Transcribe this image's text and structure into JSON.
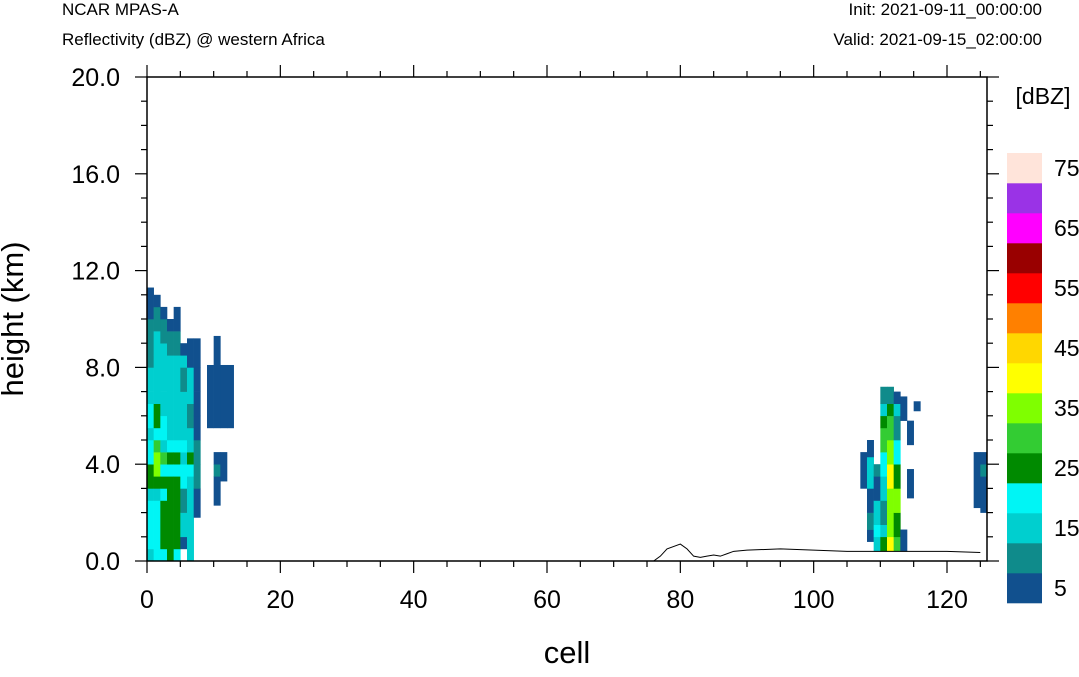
{
  "header": {
    "model": "NCAR MPAS-A",
    "field": "Reflectivity (dBZ) @ western Africa",
    "init": "Init: 2021-09-11_00:00:00",
    "valid": "Valid: 2021-09-15_02:00:00"
  },
  "chart_data": {
    "type": "heatmap",
    "title": "Reflectivity (dBZ) @ western Africa",
    "xlabel": "cell",
    "ylabel": "height (km)",
    "xlim": [
      0,
      126
    ],
    "ylim": [
      0,
      20
    ],
    "x_ticks": [
      0,
      20,
      40,
      60,
      80,
      100,
      120
    ],
    "x_tick_labels": [
      "0",
      "20",
      "40",
      "60",
      "80",
      "100",
      "120"
    ],
    "y_ticks": [
      0,
      4,
      8,
      12,
      16,
      20
    ],
    "y_tick_labels": [
      "0.0",
      "4.0",
      "8.0",
      "12.0",
      "16.0",
      "20.0"
    ],
    "colorbar": {
      "title": "[dBZ]",
      "levels": [
        5,
        10,
        15,
        20,
        25,
        30,
        35,
        40,
        45,
        50,
        55,
        60,
        65,
        70,
        75
      ],
      "tick_labels": [
        "5",
        "15",
        "25",
        "35",
        "45",
        "55",
        "65",
        "75"
      ],
      "colors": [
        "#11508e",
        "#0f8b8b",
        "#00cfcf",
        "#00f5f5",
        "#008a00",
        "#33cc33",
        "#7fff00",
        "#ffff00",
        "#ffd700",
        "#ff8000",
        "#ff0000",
        "#990000",
        "#ff00ff",
        "#9a33e6",
        "#ffe4da"
      ]
    },
    "terrain": {
      "x": [
        0,
        76,
        77,
        78,
        80,
        81,
        82,
        83,
        84,
        85,
        86,
        87,
        88,
        90,
        95,
        100,
        105,
        110,
        115,
        120,
        125
      ],
      "height": [
        0.0,
        0.0,
        0.2,
        0.5,
        0.7,
        0.5,
        0.2,
        0.15,
        0.2,
        0.25,
        0.2,
        0.3,
        0.4,
        0.45,
        0.5,
        0.45,
        0.4,
        0.4,
        0.4,
        0.4,
        0.35
      ]
    },
    "cells": [
      {
        "x": 0,
        "dbz": [
          [
            0,
            0.5,
            15
          ],
          [
            0.5,
            2.5,
            20
          ],
          [
            2.5,
            3.0,
            15
          ],
          [
            3.0,
            4.0,
            25
          ],
          [
            4.0,
            5.0,
            20
          ],
          [
            5.0,
            5.5,
            15
          ],
          [
            5.5,
            6.5,
            20
          ],
          [
            6.5,
            7.0,
            15
          ],
          [
            7.0,
            7.5,
            15
          ],
          [
            7.5,
            8.0,
            15
          ],
          [
            8.0,
            9.0,
            10
          ],
          [
            9.0,
            10.0,
            10
          ],
          [
            10.0,
            11.3,
            5
          ]
        ]
      },
      {
        "x": 1,
        "dbz": [
          [
            0,
            0.5,
            20
          ],
          [
            0.5,
            2.5,
            20
          ],
          [
            2.5,
            3.0,
            15
          ],
          [
            3.0,
            3.5,
            25
          ],
          [
            3.5,
            4.5,
            35
          ],
          [
            4.5,
            5.0,
            30
          ],
          [
            5.0,
            5.5,
            20
          ],
          [
            5.5,
            6.5,
            25
          ],
          [
            6.5,
            7.5,
            15
          ],
          [
            7.5,
            8.5,
            15
          ],
          [
            8.5,
            9.5,
            15
          ],
          [
            9.5,
            10.5,
            10
          ],
          [
            10.5,
            11.0,
            5
          ]
        ]
      },
      {
        "x": 2,
        "dbz": [
          [
            0,
            0.5,
            20
          ],
          [
            0.5,
            2.5,
            25
          ],
          [
            2.5,
            3.0,
            20
          ],
          [
            3.0,
            3.5,
            25
          ],
          [
            3.5,
            4.0,
            20
          ],
          [
            4.0,
            4.5,
            30
          ],
          [
            4.5,
            5.0,
            15
          ],
          [
            5.0,
            6.0,
            20
          ],
          [
            6.0,
            7.0,
            15
          ],
          [
            7.0,
            8.0,
            15
          ],
          [
            8.0,
            9.0,
            15
          ],
          [
            9.0,
            10.0,
            10
          ],
          [
            10.0,
            10.5,
            5
          ]
        ]
      },
      {
        "x": 3,
        "dbz": [
          [
            0,
            0.5,
            25
          ],
          [
            0.5,
            3.5,
            25
          ],
          [
            3.5,
            4.0,
            20
          ],
          [
            4.0,
            4.5,
            25
          ],
          [
            4.5,
            5.0,
            20
          ],
          [
            5.0,
            6.0,
            15
          ],
          [
            6.0,
            7.5,
            15
          ],
          [
            7.5,
            8.5,
            15
          ],
          [
            8.5,
            9.5,
            10
          ],
          [
            9.5,
            10.0,
            5
          ]
        ]
      },
      {
        "x": 4,
        "dbz": [
          [
            0,
            0.5,
            20
          ],
          [
            0.5,
            3.5,
            25
          ],
          [
            3.5,
            4.0,
            20
          ],
          [
            4.0,
            4.5,
            25
          ],
          [
            4.5,
            5.0,
            20
          ],
          [
            5.0,
            6.0,
            15
          ],
          [
            6.0,
            7.5,
            15
          ],
          [
            7.5,
            8.5,
            15
          ],
          [
            8.5,
            9.5,
            10
          ],
          [
            9.5,
            10.5,
            5
          ]
        ]
      },
      {
        "x": 5,
        "dbz": [
          [
            0.5,
            1.0,
            5
          ],
          [
            1.0,
            2.0,
            15
          ],
          [
            2.0,
            3.0,
            10
          ],
          [
            3.0,
            4.0,
            20
          ],
          [
            4.0,
            4.5,
            15
          ],
          [
            4.5,
            5.0,
            20
          ],
          [
            5.0,
            6.0,
            15
          ],
          [
            6.0,
            7.0,
            15
          ],
          [
            7.0,
            8.0,
            10
          ],
          [
            8.0,
            8.5,
            15
          ],
          [
            8.5,
            9.0,
            5
          ]
        ]
      },
      {
        "x": 6,
        "dbz": [
          [
            0,
            0.5,
            15
          ],
          [
            0.5,
            1.5,
            15
          ],
          [
            1.5,
            2.5,
            15
          ],
          [
            2.5,
            3.5,
            15
          ],
          [
            3.5,
            4.0,
            20
          ],
          [
            4.0,
            4.5,
            25
          ],
          [
            4.5,
            5.5,
            15
          ],
          [
            5.5,
            6.5,
            10
          ],
          [
            6.5,
            7.5,
            15
          ],
          [
            7.5,
            8.0,
            15
          ],
          [
            8.0,
            9.2,
            5
          ]
        ]
      },
      {
        "x": 7,
        "dbz": [
          [
            1.8,
            3.0,
            5
          ],
          [
            3.0,
            4.0,
            10
          ],
          [
            4.0,
            5.0,
            10
          ],
          [
            5.0,
            6.0,
            5
          ],
          [
            6.0,
            7.0,
            5
          ],
          [
            7.0,
            8.0,
            5
          ],
          [
            8.0,
            9.2,
            5
          ]
        ]
      },
      {
        "x": 9,
        "dbz": [
          [
            5.5,
            8.1,
            5
          ]
        ]
      },
      {
        "x": 10,
        "dbz": [
          [
            2.3,
            3.5,
            5
          ],
          [
            3.5,
            4.0,
            10
          ],
          [
            4.0,
            4.5,
            5
          ],
          [
            5.5,
            9.3,
            5
          ]
        ]
      },
      {
        "x": 11,
        "dbz": [
          [
            3.3,
            4.5,
            5
          ],
          [
            5.5,
            8.1,
            5
          ]
        ]
      },
      {
        "x": 12,
        "dbz": [
          [
            5.5,
            8.1,
            5
          ]
        ]
      },
      {
        "x": 107,
        "dbz": [
          [
            3.0,
            4.5,
            5
          ]
        ]
      },
      {
        "x": 108,
        "dbz": [
          [
            0.8,
            1.3,
            5
          ],
          [
            1.3,
            2.0,
            10
          ],
          [
            2.0,
            3.0,
            5
          ],
          [
            3.0,
            4.3,
            15
          ],
          [
            4.3,
            5.0,
            5
          ]
        ]
      },
      {
        "x": 109,
        "dbz": [
          [
            0.4,
            1.0,
            15
          ],
          [
            1.0,
            1.5,
            20
          ],
          [
            1.5,
            2.5,
            15
          ],
          [
            2.5,
            3.5,
            5
          ],
          [
            3.5,
            4.0,
            10
          ]
        ]
      },
      {
        "x": 110,
        "dbz": [
          [
            0.4,
            1.0,
            25
          ],
          [
            1.0,
            1.5,
            15
          ],
          [
            1.5,
            2.5,
            10
          ],
          [
            2.5,
            3.5,
            15
          ],
          [
            3.5,
            4.5,
            20
          ],
          [
            4.5,
            5.5,
            30
          ],
          [
            5.5,
            6.0,
            25
          ],
          [
            6.0,
            6.5,
            15
          ],
          [
            6.5,
            7.2,
            10
          ]
        ]
      },
      {
        "x": 111,
        "dbz": [
          [
            0.4,
            1.0,
            40
          ],
          [
            1.0,
            2.0,
            35
          ],
          [
            2.0,
            3.0,
            35
          ],
          [
            3.0,
            4.0,
            40
          ],
          [
            4.0,
            5.0,
            35
          ],
          [
            5.0,
            6.0,
            30
          ],
          [
            6.0,
            6.5,
            25
          ],
          [
            6.5,
            7.2,
            10
          ]
        ]
      },
      {
        "x": 112,
        "dbz": [
          [
            0.4,
            1.0,
            30
          ],
          [
            1.0,
            2.0,
            25
          ],
          [
            2.0,
            3.0,
            35
          ],
          [
            3.0,
            4.0,
            25
          ],
          [
            4.0,
            5.0,
            20
          ],
          [
            5.0,
            6.0,
            10
          ],
          [
            6.0,
            6.5,
            15
          ],
          [
            6.5,
            7.0,
            5
          ]
        ]
      },
      {
        "x": 113,
        "dbz": [
          [
            0.4,
            1.3,
            5
          ],
          [
            5.8,
            6.8,
            5
          ]
        ]
      },
      {
        "x": 114,
        "dbz": [
          [
            2.6,
            3.8,
            5
          ],
          [
            4.8,
            5.8,
            5
          ]
        ]
      },
      {
        "x": 115,
        "dbz": [
          [
            6.2,
            6.6,
            5
          ]
        ]
      },
      {
        "x": 124,
        "dbz": [
          [
            2.2,
            4.5,
            5
          ]
        ]
      },
      {
        "x": 125,
        "dbz": [
          [
            2.0,
            3.5,
            5
          ],
          [
            3.5,
            4.0,
            10
          ],
          [
            4.0,
            4.5,
            5
          ]
        ]
      }
    ]
  }
}
